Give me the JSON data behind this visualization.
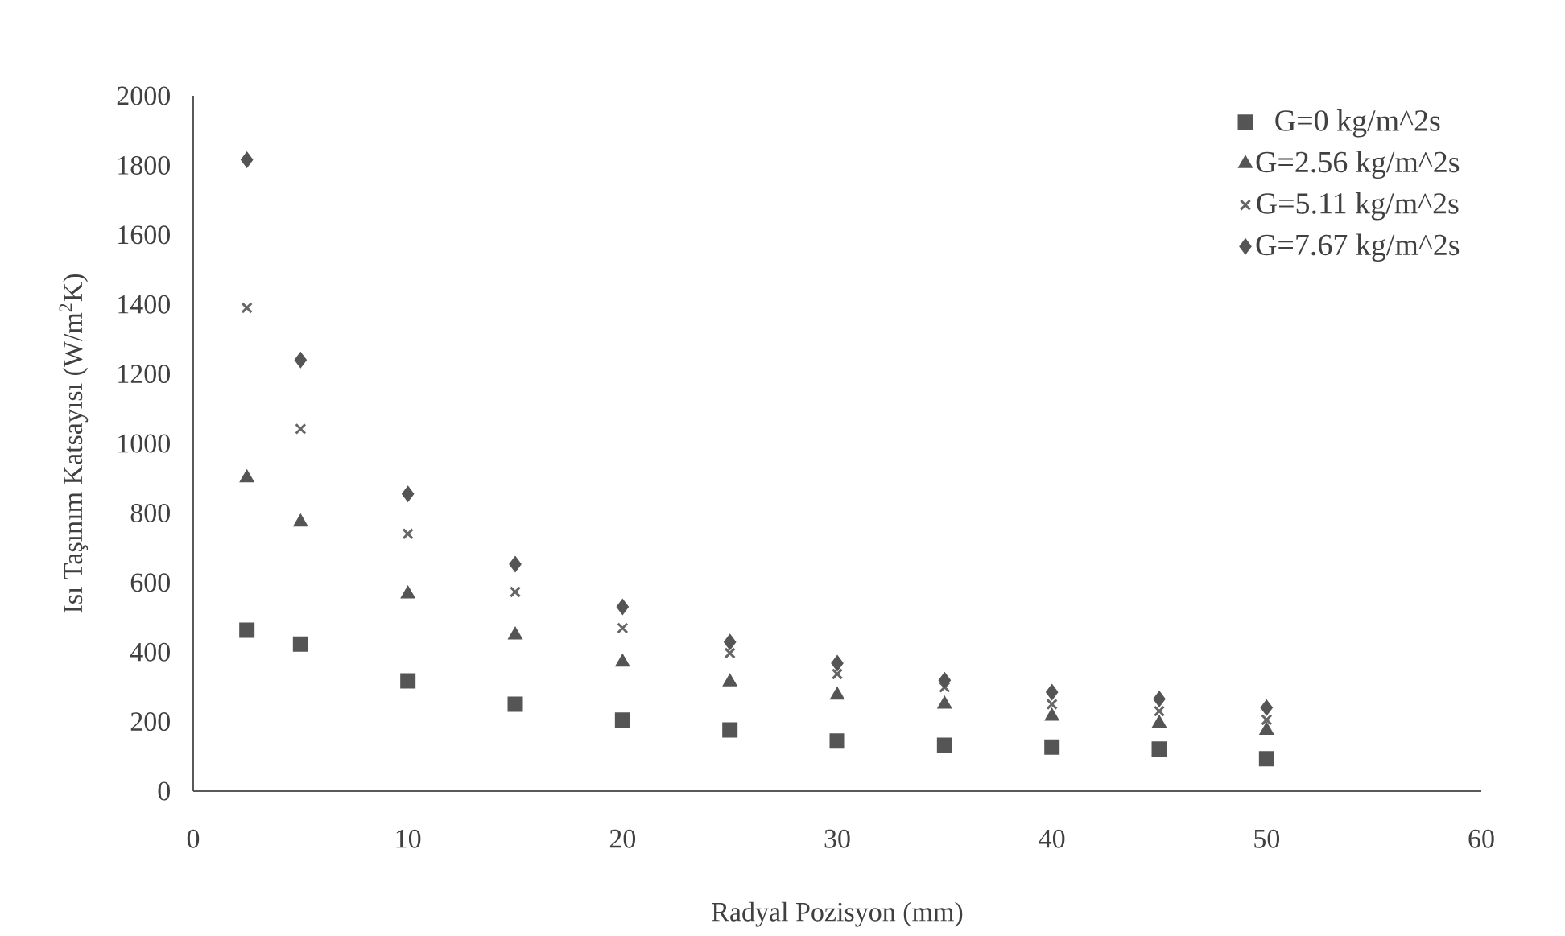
{
  "chart_data": {
    "type": "scatter",
    "xlabel": "Radyal Pozisyon (mm)",
    "ylabel": "Isı Taşınım Katsayısı (W/m$^{2}$K)",
    "x": [
      2.5,
      5,
      10,
      15,
      20,
      25,
      30,
      35,
      40,
      45,
      50
    ],
    "series": [
      {
        "name": "G=0 kg/m^2s",
        "color": "#555555",
        "marker": "square",
        "values": [
          463,
          423,
          317,
          250,
          204,
          176,
          144,
          132,
          127,
          121,
          93
        ]
      },
      {
        "name": "G=2.56 kg/m^2s",
        "color": "#555555",
        "marker": "triangle",
        "values": [
          901,
          774,
          567,
          449,
          371,
          314,
          276,
          250,
          215,
          195,
          175
        ]
      },
      {
        "name": "G=5.11 kg/m^2s",
        "color": "#666666",
        "marker": "cross",
        "values": [
          1390,
          1042,
          740,
          573,
          469,
          397,
          337,
          299,
          250,
          230,
          205
        ]
      },
      {
        "name": "G=7.67 kg/m^2s",
        "color": "#555555",
        "marker": "diamond",
        "values": [
          1816,
          1240,
          855,
          653,
          530,
          429,
          368,
          319,
          285,
          265,
          240
        ]
      }
    ],
    "xlim": [
      0,
      60
    ],
    "ylim": [
      0,
      2000
    ],
    "xticks": [
      0,
      10,
      20,
      30,
      40,
      50,
      60
    ],
    "yticks": [
      0,
      200,
      400,
      600,
      800,
      1000,
      1200,
      1400,
      1600,
      1800,
      2000
    ],
    "grid": false,
    "legend": "top right"
  }
}
